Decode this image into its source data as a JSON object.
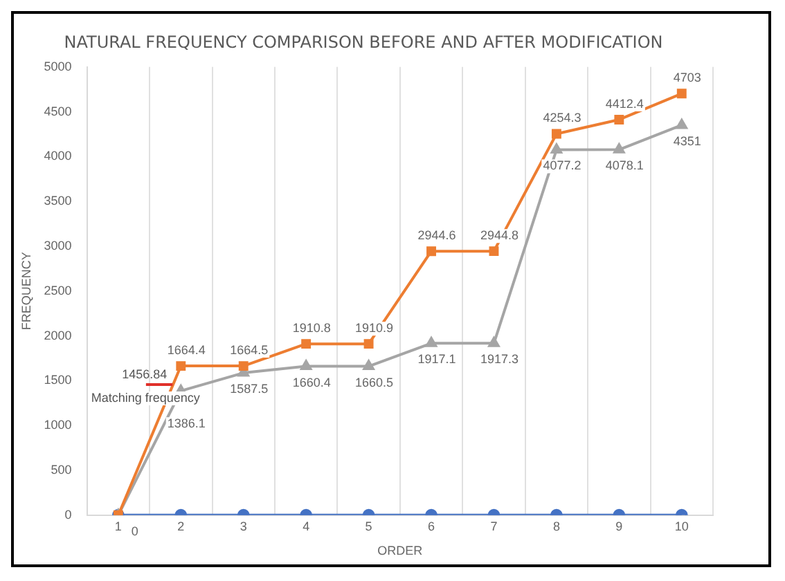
{
  "chart_data": {
    "type": "line",
    "title": "NATURAL FREQUENCY COMPARISON BEFORE AND AFTER MODIFICATION",
    "xlabel": "ORDER",
    "ylabel": "FREQUENCY",
    "categories": [
      "1",
      "2",
      "3",
      "4",
      "5",
      "6",
      "7",
      "8",
      "9",
      "10"
    ],
    "series": [
      {
        "color": "#ed7d31",
        "marker": "square",
        "values": [
          0,
          1664.4,
          1664.5,
          1910.8,
          1910.9,
          2944.6,
          2944.8,
          4254.3,
          4412.4,
          4703
        ],
        "value_labels": [
          null,
          "1664.4",
          "1664.5",
          "1910.8",
          "1910.9",
          "2944.6",
          "2944.8",
          "4254.3",
          "4412.4",
          "4703"
        ]
      },
      {
        "color": "#a5a5a5",
        "marker": "triangle",
        "values": [
          0,
          1386.1,
          1587.5,
          1660.4,
          1660.5,
          1917.1,
          1917.3,
          4077.2,
          4078.1,
          4351
        ],
        "value_labels": [
          "0",
          "1386.1",
          "1587.5",
          "1660.4",
          "1660.5",
          "1917.1",
          "1917.3",
          "4077.2",
          "4078.1",
          "4351"
        ]
      },
      {
        "color": "#4472c4",
        "marker": "circle",
        "values": [
          0,
          0,
          0,
          0,
          0,
          0,
          0,
          0,
          0,
          0
        ]
      }
    ],
    "ref_lines": [
      {
        "axis": "y",
        "value": 1456.84,
        "label": "Matching frequency",
        "color": "#e0302a"
      }
    ],
    "annotations": [
      {
        "text": "1456.84",
        "y": 1456.84
      }
    ],
    "ylim": [
      0,
      5000
    ],
    "yticks": [
      0,
      500,
      1000,
      1500,
      2000,
      2500,
      3000,
      3500,
      4000,
      4500,
      5000
    ],
    "grid": "x",
    "legend": false
  }
}
